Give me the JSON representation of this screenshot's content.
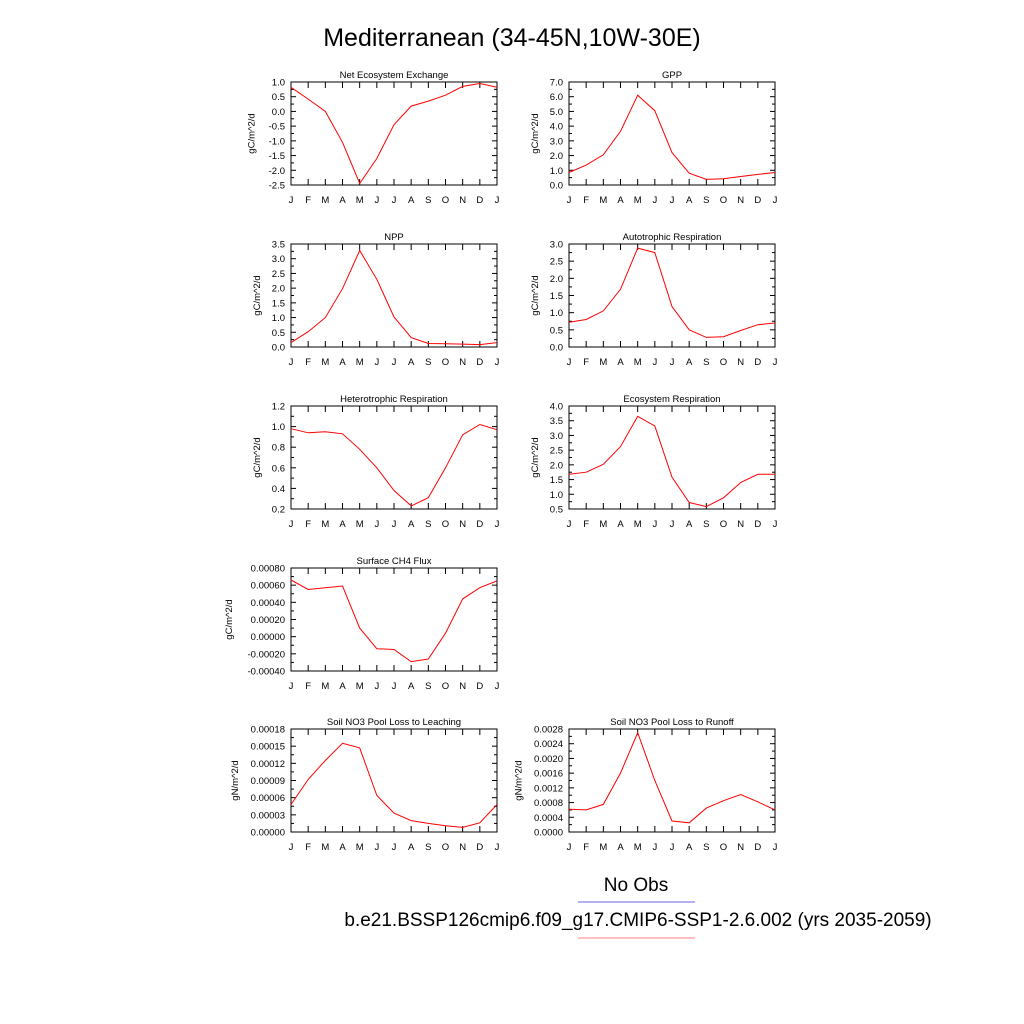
{
  "figure": {
    "title": "Mediterranean (34-45N,10W-30E)",
    "legend": {
      "obs_label": "No Obs",
      "obs_color": "#6666dd",
      "model_label": "b.e21.BSSP126cmip6.f09_g17.CMIP6-SSP1-2.6.002 (yrs 2035-2059)",
      "model_color": "#ff8080"
    }
  },
  "chart_data": [
    {
      "type": "line",
      "title": "Net Ecosystem Exchange",
      "ylabel": "gC/m^2/d",
      "ylim": [
        -2.5,
        1.0
      ],
      "yticks": [
        "1.0",
        "0.5",
        "0.0",
        "-0.5",
        "-1.0",
        "-1.5",
        "-2.0",
        "-2.5"
      ],
      "categories": [
        "J",
        "F",
        "M",
        "A",
        "M",
        "J",
        "J",
        "A",
        "S",
        "O",
        "N",
        "D",
        "J"
      ],
      "series": [
        {
          "values": [
            0.82,
            0.42,
            0.0,
            -1.05,
            -2.45,
            -1.6,
            -0.45,
            0.18,
            0.35,
            0.55,
            0.85,
            0.95,
            0.82
          ]
        }
      ],
      "color": "#ff0000"
    },
    {
      "type": "line",
      "title": "GPP",
      "ylabel": "gC/m^2/d",
      "ylim": [
        0.0,
        7.0
      ],
      "yticks": [
        "7.0",
        "6.0",
        "5.0",
        "4.0",
        "3.0",
        "2.0",
        "1.0",
        "0.0"
      ],
      "categories": [
        "J",
        "F",
        "M",
        "A",
        "M",
        "J",
        "J",
        "A",
        "S",
        "O",
        "N",
        "D",
        "J"
      ],
      "series": [
        {
          "values": [
            0.85,
            1.35,
            2.05,
            3.65,
            6.1,
            5.05,
            2.2,
            0.8,
            0.38,
            0.42,
            0.58,
            0.72,
            0.85
          ]
        }
      ],
      "color": "#ff0000"
    },
    {
      "type": "line",
      "title": "NPP",
      "ylabel": "gC/m^2/d",
      "ylim": [
        0.0,
        3.5
      ],
      "yticks": [
        "3.5",
        "3.0",
        "2.5",
        "2.0",
        "1.5",
        "1.0",
        "0.5",
        "0.0"
      ],
      "categories": [
        "J",
        "F",
        "M",
        "A",
        "M",
        "J",
        "J",
        "A",
        "S",
        "O",
        "N",
        "D",
        "J"
      ],
      "series": [
        {
          "values": [
            0.15,
            0.52,
            1.0,
            1.98,
            3.28,
            2.3,
            1.02,
            0.32,
            0.12,
            0.11,
            0.1,
            0.08,
            0.15
          ]
        }
      ],
      "color": "#ff0000"
    },
    {
      "type": "line",
      "title": "Autotrophic Respiration",
      "ylabel": "gC/m^2/d",
      "ylim": [
        0.0,
        3.0
      ],
      "yticks": [
        "3.0",
        "2.5",
        "2.0",
        "1.5",
        "1.0",
        "0.5",
        "0.0"
      ],
      "categories": [
        "J",
        "F",
        "M",
        "A",
        "M",
        "J",
        "J",
        "A",
        "S",
        "O",
        "N",
        "D",
        "J"
      ],
      "series": [
        {
          "values": [
            0.72,
            0.8,
            1.05,
            1.68,
            2.88,
            2.75,
            1.18,
            0.5,
            0.28,
            0.3,
            0.48,
            0.65,
            0.7
          ]
        }
      ],
      "color": "#ff0000"
    },
    {
      "type": "line",
      "title": "Heterotrophic Respiration",
      "ylabel": "gC/m^2/d",
      "ylim": [
        0.2,
        1.2
      ],
      "yticks": [
        "1.2",
        "1.0",
        "0.8",
        "0.6",
        "0.4",
        "0.2"
      ],
      "categories": [
        "J",
        "F",
        "M",
        "A",
        "M",
        "J",
        "J",
        "A",
        "S",
        "O",
        "N",
        "D",
        "J"
      ],
      "series": [
        {
          "values": [
            0.98,
            0.94,
            0.95,
            0.93,
            0.78,
            0.6,
            0.38,
            0.23,
            0.31,
            0.6,
            0.92,
            1.02,
            0.97
          ]
        }
      ],
      "color": "#ff0000"
    },
    {
      "type": "line",
      "title": "Ecosystem Respiration",
      "ylabel": "gC/m^2/d",
      "ylim": [
        0.5,
        4.0
      ],
      "yticks": [
        "4.0",
        "3.5",
        "3.0",
        "2.5",
        "2.0",
        "1.5",
        "1.0",
        "0.5"
      ],
      "categories": [
        "J",
        "F",
        "M",
        "A",
        "M",
        "J",
        "J",
        "A",
        "S",
        "O",
        "N",
        "D",
        "J"
      ],
      "series": [
        {
          "values": [
            1.68,
            1.75,
            2.02,
            2.62,
            3.65,
            3.32,
            1.58,
            0.72,
            0.58,
            0.88,
            1.4,
            1.68,
            1.68
          ]
        }
      ],
      "color": "#ff0000"
    },
    {
      "type": "line",
      "title": "Surface CH4 Flux",
      "ylabel": "gC/m^2/d",
      "ylim": [
        -0.0004,
        0.0008
      ],
      "yticks": [
        "0.00080",
        "0.00060",
        "0.00040",
        "0.00020",
        "0.00000",
        "-0.00020",
        "-0.00040"
      ],
      "categories": [
        "J",
        "F",
        "M",
        "A",
        "M",
        "J",
        "J",
        "A",
        "S",
        "O",
        "N",
        "D",
        "J"
      ],
      "series": [
        {
          "values": [
            0.00066,
            0.00055,
            0.00057,
            0.00059,
            0.0001,
            -0.00014,
            -0.00015,
            -0.00029,
            -0.00026,
            4e-05,
            0.00044,
            0.00057,
            0.00065
          ]
        }
      ],
      "color": "#ff0000"
    },
    {
      "type": "line",
      "title": "Soil NO3 Pool Loss to Leaching",
      "ylabel": "gN/m^2/d",
      "ylim": [
        0.0,
        0.00018
      ],
      "yticks": [
        "0.00018",
        "0.00015",
        "0.00012",
        "0.00009",
        "0.00006",
        "0.00003",
        "0.00000"
      ],
      "categories": [
        "J",
        "F",
        "M",
        "A",
        "M",
        "J",
        "J",
        "A",
        "S",
        "O",
        "N",
        "D",
        "J"
      ],
      "series": [
        {
          "values": [
            4.8e-05,
            9.2e-05,
            0.000125,
            0.000155,
            0.000147,
            6.4e-05,
            3.3e-05,
            2e-05,
            1.5e-05,
            1.1e-05,
            8e-06,
            1.6e-05,
            4.8e-05
          ]
        }
      ],
      "color": "#ff0000"
    },
    {
      "type": "line",
      "title": "Soil NO3 Pool Loss to Runoff",
      "ylabel": "gN/m^2/d",
      "ylim": [
        0.0,
        0.0028
      ],
      "yticks": [
        "0.0028",
        "0.0024",
        "0.0020",
        "0.0016",
        "0.0012",
        "0.0008",
        "0.0004",
        "0.0000"
      ],
      "categories": [
        "J",
        "F",
        "M",
        "A",
        "M",
        "J",
        "J",
        "A",
        "S",
        "O",
        "N",
        "D",
        "J"
      ],
      "series": [
        {
          "values": [
            0.00062,
            0.0006,
            0.00075,
            0.0016,
            0.0027,
            0.0014,
            0.0003,
            0.00025,
            0.00065,
            0.00085,
            0.00102,
            0.00082,
            0.0006
          ]
        }
      ],
      "color": "#ff0000"
    }
  ]
}
